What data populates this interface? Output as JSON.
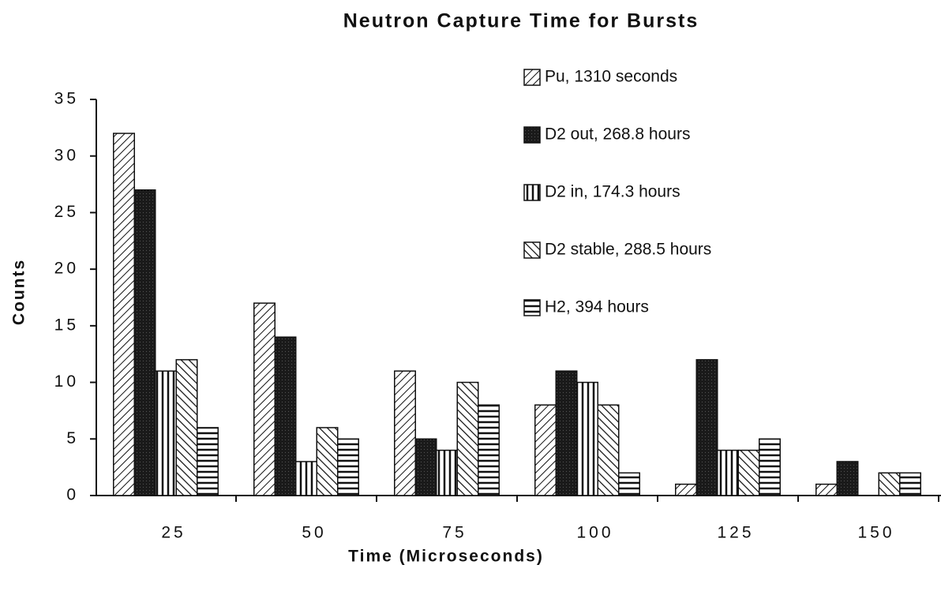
{
  "chart_data": {
    "type": "bar",
    "title": "Neutron Capture Time for Bursts",
    "xlabel": "Time   (Microseconds)",
    "ylabel": "Counts",
    "categories": [
      "25",
      "50",
      "75",
      "100",
      "125",
      "150"
    ],
    "series": [
      {
        "name": "Pu, 1310 seconds",
        "color": "#111111",
        "pattern": "forward-diagonal",
        "values": [
          32,
          17,
          11,
          8,
          1,
          1
        ]
      },
      {
        "name": "D2 out, 268.8 hours",
        "color": "#111111",
        "pattern": "solid",
        "values": [
          27,
          14,
          5,
          11,
          12,
          3
        ]
      },
      {
        "name": "D2 in, 174.3 hours",
        "color": "#111111",
        "pattern": "vertical",
        "values": [
          11,
          3,
          4,
          10,
          4,
          0
        ]
      },
      {
        "name": "D2 stable, 288.5 hours",
        "color": "#111111",
        "pattern": "backward-diagonal",
        "values": [
          12,
          6,
          10,
          8,
          4,
          2
        ]
      },
      {
        "name": "H2, 394 hours",
        "color": "#111111",
        "pattern": "horizontal",
        "values": [
          6,
          5,
          8,
          2,
          5,
          2
        ]
      }
    ],
    "ylim": [
      0,
      35
    ],
    "yticks": [
      0,
      5,
      10,
      15,
      20,
      25,
      30,
      35
    ],
    "legend": "top-right"
  }
}
